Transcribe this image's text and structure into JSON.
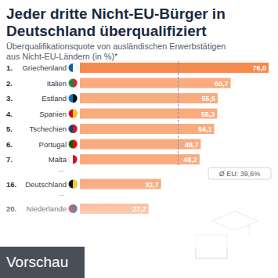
{
  "chart_data": {
    "type": "bar",
    "orientation": "horizontal",
    "title": "Jeder dritte Nicht-EU-Bürger in Deutschland überqualifiziert",
    "subtitle": "Überqualifikationsquote von ausländischen Erwerbstätigen aus Nicht-EU-Ländern (in %)*",
    "ranks": [
      "1.",
      "2.",
      "3.",
      "4.",
      "5.",
      "6.",
      "7.",
      "16.",
      "20."
    ],
    "categories": [
      "Griechenland",
      "Italien",
      "Estland",
      "Spanien",
      "Tschechien",
      "Portugal",
      "Malta",
      "Deutschland",
      "Niederlande"
    ],
    "values": [
      76.0,
      60.7,
      55.5,
      55.3,
      54.1,
      48.7,
      48.2,
      32.7,
      27.7
    ],
    "value_labels": [
      "76,0",
      "60,7",
      "55,5",
      "55,3",
      "54,1",
      "48,7",
      "48,2",
      "32,7",
      "27,7"
    ],
    "colors": [
      "#f58a4e",
      "#f9ab80",
      "#f9ab80",
      "#f9ab80",
      "#f9ab80",
      "#f9ab80",
      "#f9ab80",
      "#f9ab80",
      "#f9ab80"
    ],
    "data_labels": true,
    "tick_labels": false,
    "xlim": [
      0,
      76
    ],
    "separator": "...",
    "annotation": {
      "label": "Ø EU: 39,6%",
      "value": 39.6
    },
    "overlay_label": "Vorschau"
  }
}
